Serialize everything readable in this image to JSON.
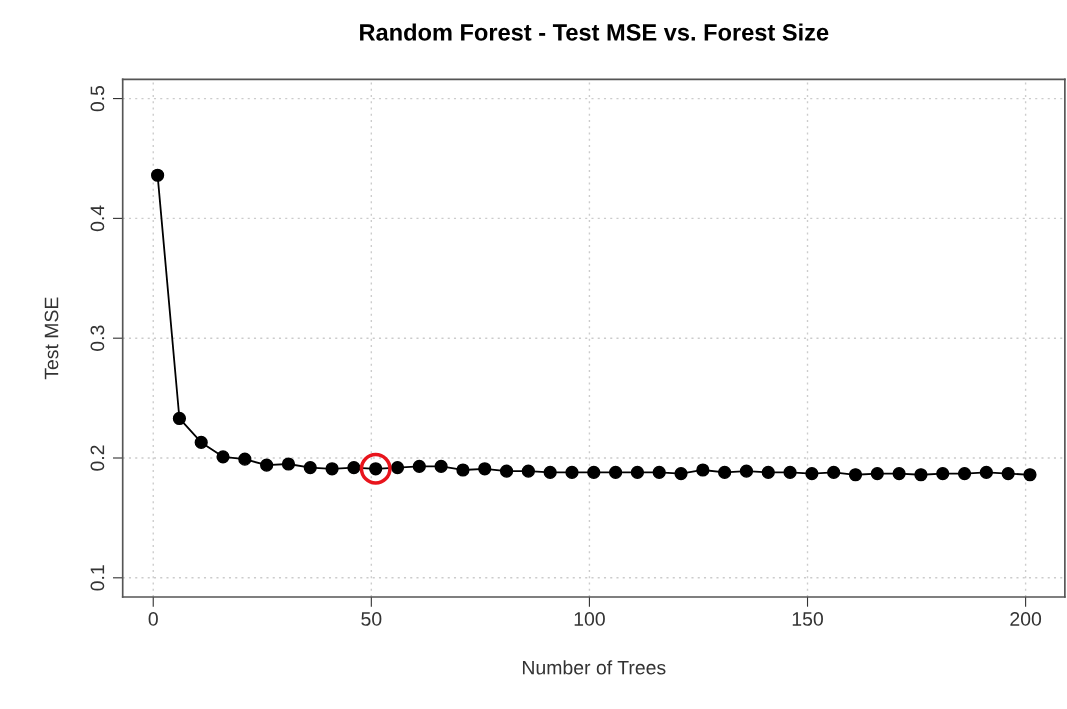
{
  "chart_data": {
    "type": "line",
    "title": "Random Forest - Test MSE vs. Forest Size",
    "xlabel": "Number of Trees",
    "ylabel": "Test MSE",
    "marker": "circle",
    "grid": true,
    "xlim": [
      -7,
      209
    ],
    "xticks": [
      0,
      50,
      100,
      150,
      200
    ],
    "ylim": [
      0.084,
      0.516
    ],
    "yticks": [
      0.1,
      0.2,
      0.3,
      0.4,
      0.5
    ],
    "series": [
      {
        "color": "#000000",
        "x": [
          1,
          6,
          11,
          16,
          21,
          26,
          31,
          36,
          41,
          46,
          51,
          56,
          61,
          66,
          71,
          76,
          81,
          86,
          91,
          96,
          101,
          106,
          111,
          116,
          121,
          126,
          131,
          136,
          141,
          146,
          151,
          156,
          161,
          166,
          171,
          176,
          181,
          186,
          191,
          196,
          201
        ],
        "values": [
          0.436,
          0.233,
          0.213,
          0.201,
          0.199,
          0.194,
          0.195,
          0.192,
          0.191,
          0.192,
          0.191,
          0.192,
          0.193,
          0.193,
          0.19,
          0.191,
          0.189,
          0.189,
          0.188,
          0.188,
          0.188,
          0.188,
          0.188,
          0.188,
          0.187,
          0.19,
          0.188,
          0.189,
          0.188,
          0.188,
          0.187,
          0.188,
          0.186,
          0.187,
          0.187,
          0.186,
          0.187,
          0.187,
          0.188,
          0.187,
          0.186
        ]
      },
      {
        "type": "scatter",
        "color": "#e8141c",
        "x": [
          51
        ],
        "values": [
          0.191
        ]
      }
    ]
  }
}
